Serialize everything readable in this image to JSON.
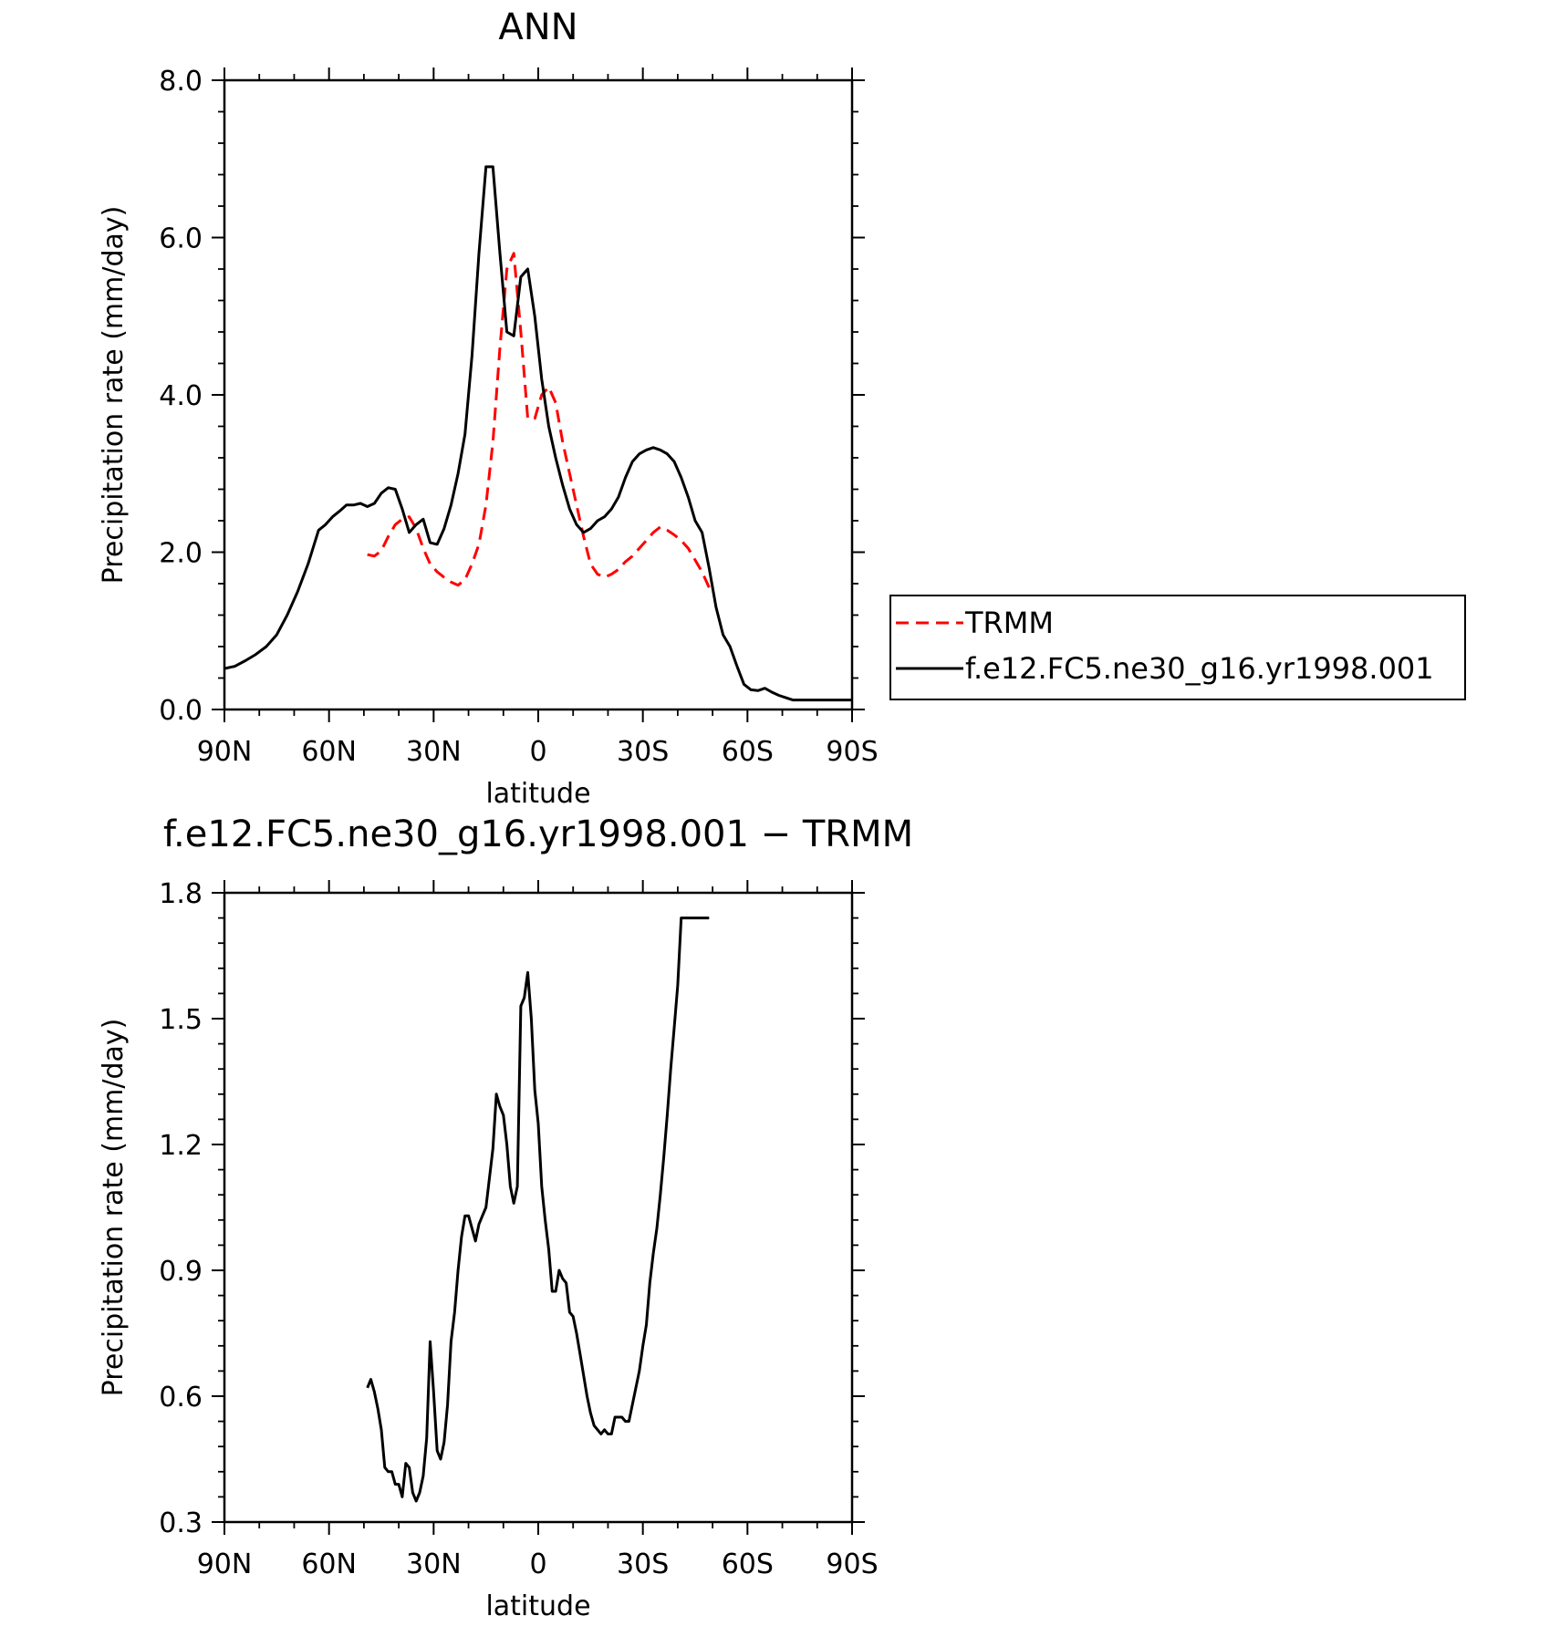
{
  "chart_data": [
    {
      "type": "line",
      "title": "ANN",
      "xlabel": "latitude",
      "ylabel": "Precipitation rate (mm/day)",
      "xlim": [
        90,
        -90
      ],
      "ylim": [
        0.0,
        8.0
      ],
      "xticks": [
        90,
        60,
        30,
        0,
        -30,
        -60,
        -90
      ],
      "xtick_labels": [
        "90N",
        "60N",
        "30N",
        "0",
        "30S",
        "60S",
        "90S"
      ],
      "yticks": [
        0,
        2,
        4,
        6,
        8
      ],
      "ytick_labels": [
        "0.0",
        "2.0",
        "4.0",
        "6.0",
        "8.0"
      ],
      "legend_placement": "right",
      "series": [
        {
          "name": "TRMM",
          "color": "#ff0000",
          "dash": "dashed",
          "x": [
            49,
            47,
            45,
            43,
            41,
            39,
            37,
            35,
            33,
            31,
            29,
            27,
            25,
            23,
            21,
            19,
            17,
            15,
            13,
            11,
            9,
            7,
            5,
            3,
            1,
            -1,
            -3,
            -5,
            -7,
            -9,
            -11,
            -13,
            -15,
            -17,
            -19,
            -21,
            -23,
            -25,
            -27,
            -29,
            -31,
            -33,
            -35,
            -37,
            -39,
            -41,
            -43,
            -45,
            -47,
            -49
          ],
          "y": [
            1.97,
            1.95,
            2.02,
            2.2,
            2.35,
            2.42,
            2.45,
            2.3,
            2.05,
            1.85,
            1.75,
            1.68,
            1.62,
            1.58,
            1.65,
            1.85,
            2.1,
            2.6,
            3.4,
            4.6,
            5.6,
            5.8,
            4.8,
            3.7,
            3.7,
            4.0,
            4.1,
            3.9,
            3.4,
            3.0,
            2.6,
            2.2,
            1.85,
            1.72,
            1.68,
            1.72,
            1.78,
            1.88,
            1.95,
            2.05,
            2.15,
            2.25,
            2.32,
            2.28,
            2.22,
            2.15,
            2.05,
            1.9,
            1.75,
            1.55
          ]
        },
        {
          "name": "f.e12.FC5.ne30_g16.yr1998.001",
          "color": "#000000",
          "dash": "solid",
          "x": [
            90,
            87,
            84,
            81,
            78,
            75,
            72,
            69,
            66,
            63,
            61,
            59,
            57,
            55,
            53,
            51,
            49,
            47,
            45,
            43,
            41,
            39,
            37,
            35,
            33,
            31,
            29,
            27,
            25,
            23,
            21,
            19,
            17,
            15,
            13,
            11,
            9,
            7,
            5,
            3,
            1,
            -1,
            -3,
            -5,
            -7,
            -9,
            -11,
            -13,
            -15,
            -17,
            -19,
            -21,
            -23,
            -25,
            -27,
            -29,
            -31,
            -33,
            -35,
            -37,
            -39,
            -41,
            -43,
            -45,
            -47,
            -49,
            -51,
            -53,
            -55,
            -57,
            -59,
            -61,
            -63,
            -65,
            -67,
            -69,
            -71,
            -73,
            -75,
            -77,
            -79,
            -81,
            -84,
            -87,
            -90
          ],
          "y": [
            0.52,
            0.55,
            0.62,
            0.7,
            0.8,
            0.95,
            1.2,
            1.5,
            1.85,
            2.28,
            2.35,
            2.45,
            2.52,
            2.6,
            2.6,
            2.62,
            2.58,
            2.62,
            2.75,
            2.82,
            2.8,
            2.55,
            2.25,
            2.35,
            2.42,
            2.12,
            2.1,
            2.3,
            2.6,
            3.0,
            3.5,
            4.5,
            5.8,
            6.9,
            6.9,
            5.8,
            4.8,
            4.75,
            5.5,
            5.6,
            5.0,
            4.2,
            3.6,
            3.2,
            2.85,
            2.55,
            2.35,
            2.25,
            2.3,
            2.4,
            2.45,
            2.55,
            2.7,
            2.95,
            3.15,
            3.25,
            3.3,
            3.33,
            3.3,
            3.25,
            3.15,
            2.95,
            2.7,
            2.4,
            2.25,
            1.8,
            1.3,
            0.95,
            0.8,
            0.55,
            0.32,
            0.25,
            0.24,
            0.27,
            0.22,
            0.18,
            0.15,
            0.12,
            0.12,
            0.12,
            0.12,
            0.12,
            0.12,
            0.12,
            0.12
          ]
        }
      ]
    },
    {
      "type": "line",
      "title": "f.e12.FC5.ne30_g16.yr1998.001 − TRMM",
      "xlabel": "latitude",
      "ylabel": "Precipitation rate (mm/day)",
      "xlim": [
        90,
        -90
      ],
      "ylim": [
        0.3,
        1.8
      ],
      "xticks": [
        90,
        60,
        30,
        0,
        -30,
        -60,
        -90
      ],
      "xtick_labels": [
        "90N",
        "60N",
        "30N",
        "0",
        "30S",
        "60S",
        "90S"
      ],
      "yticks": [
        0.3,
        0.6,
        0.9,
        1.2,
        1.5,
        1.8
      ],
      "ytick_labels": [
        "0.3",
        "0.6",
        "0.9",
        "1.2",
        "1.5",
        "1.8"
      ],
      "series": [
        {
          "color": "#000000",
          "dash": "solid",
          "x": [
            49,
            48,
            47,
            46,
            45,
            44,
            43,
            42,
            41,
            40,
            39,
            38,
            37,
            36,
            35,
            34,
            33,
            32,
            31,
            30,
            29,
            28,
            27,
            26,
            25,
            24,
            23,
            22,
            21,
            20,
            19,
            18,
            17,
            16,
            15,
            14,
            13,
            12,
            11,
            10,
            9,
            8,
            7,
            6,
            5,
            4,
            3,
            2,
            1,
            0,
            -1,
            -2,
            -3,
            -4,
            -5,
            -6,
            -7,
            -8,
            -9,
            -10,
            -11,
            -12,
            -13,
            -14,
            -15,
            -16,
            -17,
            -18,
            -19,
            -20,
            -21,
            -22,
            -23,
            -24,
            -25,
            -26,
            -27,
            -28,
            -29,
            -30,
            -31,
            -32,
            -33,
            -34,
            -35,
            -36,
            -37,
            -38,
            -39,
            -40,
            -41,
            -42,
            -43,
            -44,
            -45,
            -46,
            -47,
            -48,
            -49
          ],
          "y": [
            0.62,
            0.64,
            0.61,
            0.57,
            0.52,
            0.43,
            0.42,
            0.42,
            0.39,
            0.39,
            0.36,
            0.44,
            0.43,
            0.37,
            0.35,
            0.37,
            0.41,
            0.5,
            0.73,
            0.61,
            0.47,
            0.45,
            0.49,
            0.58,
            0.73,
            0.8,
            0.9,
            0.98,
            1.03,
            1.03,
            1.0,
            0.97,
            1.01,
            1.03,
            1.05,
            1.12,
            1.19,
            1.32,
            1.29,
            1.27,
            1.2,
            1.1,
            1.06,
            1.1,
            1.53,
            1.55,
            1.61,
            1.5,
            1.33,
            1.25,
            1.1,
            1.02,
            0.95,
            0.85,
            0.85,
            0.9,
            0.88,
            0.87,
            0.8,
            0.79,
            0.75,
            0.7,
            0.65,
            0.6,
            0.56,
            0.53,
            0.52,
            0.51,
            0.52,
            0.51,
            0.51,
            0.55,
            0.55,
            0.55,
            0.54,
            0.54,
            0.58,
            0.62,
            0.66,
            0.72,
            0.77,
            0.87,
            0.94,
            1.0,
            1.08,
            1.17,
            1.27,
            1.38,
            1.48,
            1.58,
            1.74,
            1.74,
            1.74,
            1.74,
            1.74,
            1.74,
            1.74,
            1.74,
            1.74
          ]
        }
      ]
    }
  ]
}
